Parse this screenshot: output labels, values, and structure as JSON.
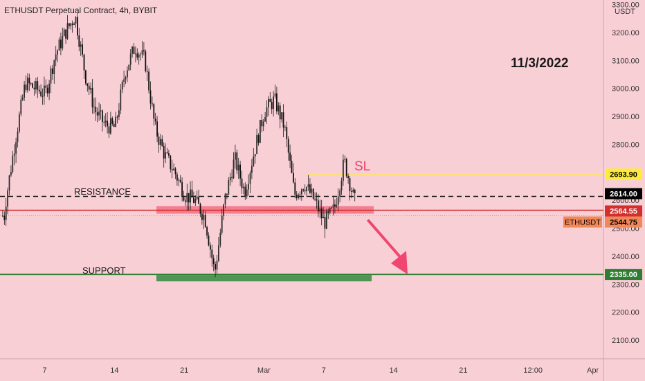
{
  "header": {
    "title": "ETHUSDT Perpetual Contract, 4h, BYBIT"
  },
  "annotations": {
    "date": "11/3/2022",
    "sl": "SL",
    "resistance": "RESISTANCE",
    "support": "SUPPORT"
  },
  "axis": {
    "currency": "USDT",
    "ticks": [
      "3300.00",
      "3200.00",
      "3100.00",
      "3000.00",
      "2900.00",
      "2800.00",
      "2700.00",
      "2600.00",
      "2500.00",
      "2400.00",
      "2300.00",
      "2200.00",
      "2100.00"
    ],
    "x_labels": [
      "7",
      "14",
      "21",
      "Mar",
      "7",
      "14",
      "21",
      "12:00",
      "Apr"
    ]
  },
  "price_labels": [
    {
      "text": "2693.90",
      "bg": "#ffeb3b",
      "fg": "#000000"
    },
    {
      "text": "2614.00",
      "bg": "#000000",
      "fg": "#ffffff"
    },
    {
      "text": "2564.55",
      "bg": "#d32f2f",
      "fg": "#ffffff"
    },
    {
      "text": "2544.75",
      "bg": "#f0885a",
      "fg": "#000000"
    },
    {
      "text": "2335.00",
      "bg": "#2e7d32",
      "fg": "#ffffff"
    }
  ],
  "symbol_tag": {
    "text": "ETHUSDT",
    "bg": "#f0885a"
  },
  "colors": {
    "background": "#f9cfd6",
    "candles": "#1a1a1a",
    "resistance_line": "#d32f2f",
    "resistance_zone": "#f06478",
    "support_line": "#2e7d32",
    "sl_line": "#ffeb3b",
    "arrow": "#ef476f",
    "sl_text": "#e8436a"
  },
  "chart_data": {
    "type": "candlestick",
    "title": "ETHUSDT Perpetual Contract, 4h, BYBIT",
    "y_unit": "USDT",
    "ylim": [
      2040,
      3340
    ],
    "x_range": [
      "Feb 3",
      "Apr 3"
    ],
    "levels": {
      "sl": 2693.9,
      "resistance_dashed": 2614.0,
      "resistance": 2564.55,
      "last_price": 2544.75,
      "support": 2335.0
    },
    "price_path": [
      {
        "date": "Feb 3",
        "price": 2590
      },
      {
        "date": "Feb 4",
        "price": 2820
      },
      {
        "date": "Feb 5",
        "price": 3020
      },
      {
        "date": "Feb 6",
        "price": 3000
      },
      {
        "date": "Feb 7",
        "price": 2980
      },
      {
        "date": "Feb 8",
        "price": 3120
      },
      {
        "date": "Feb 9",
        "price": 3200
      },
      {
        "date": "Feb 10",
        "price": 3260
      },
      {
        "date": "Feb 11",
        "price": 3050
      },
      {
        "date": "Feb 12",
        "price": 2920
      },
      {
        "date": "Feb 13",
        "price": 2870
      },
      {
        "date": "Feb 14",
        "price": 2860
      },
      {
        "date": "Feb 15",
        "price": 3060
      },
      {
        "date": "Feb 16",
        "price": 3150
      },
      {
        "date": "Feb 17",
        "price": 3100
      },
      {
        "date": "Feb 18",
        "price": 2860
      },
      {
        "date": "Feb 19",
        "price": 2760
      },
      {
        "date": "Feb 20",
        "price": 2700
      },
      {
        "date": "Feb 21",
        "price": 2620
      },
      {
        "date": "Feb 22",
        "price": 2600
      },
      {
        "date": "Feb 23",
        "price": 2540
      },
      {
        "date": "Feb 24",
        "price": 2340
      },
      {
        "date": "Feb 25",
        "price": 2600
      },
      {
        "date": "Feb 26",
        "price": 2750
      },
      {
        "date": "Feb 27",
        "price": 2630
      },
      {
        "date": "Feb 28",
        "price": 2780
      },
      {
        "date": "Mar 1",
        "price": 2920
      },
      {
        "date": "Mar 2",
        "price": 2960
      },
      {
        "date": "Mar 3",
        "price": 2860
      },
      {
        "date": "Mar 4",
        "price": 2620
      },
      {
        "date": "Mar 5",
        "price": 2660
      },
      {
        "date": "Mar 6",
        "price": 2600
      },
      {
        "date": "Mar 7",
        "price": 2520
      },
      {
        "date": "Mar 8",
        "price": 2570
      },
      {
        "date": "Mar 9",
        "price": 2740
      },
      {
        "date": "Mar 10",
        "price": 2600
      },
      {
        "date": "Mar 11",
        "price": 2545
      }
    ],
    "projection": {
      "from": {
        "date": "Mar 11",
        "price": 2550
      },
      "to": {
        "date": "Mar 15",
        "price": 2335
      }
    }
  }
}
